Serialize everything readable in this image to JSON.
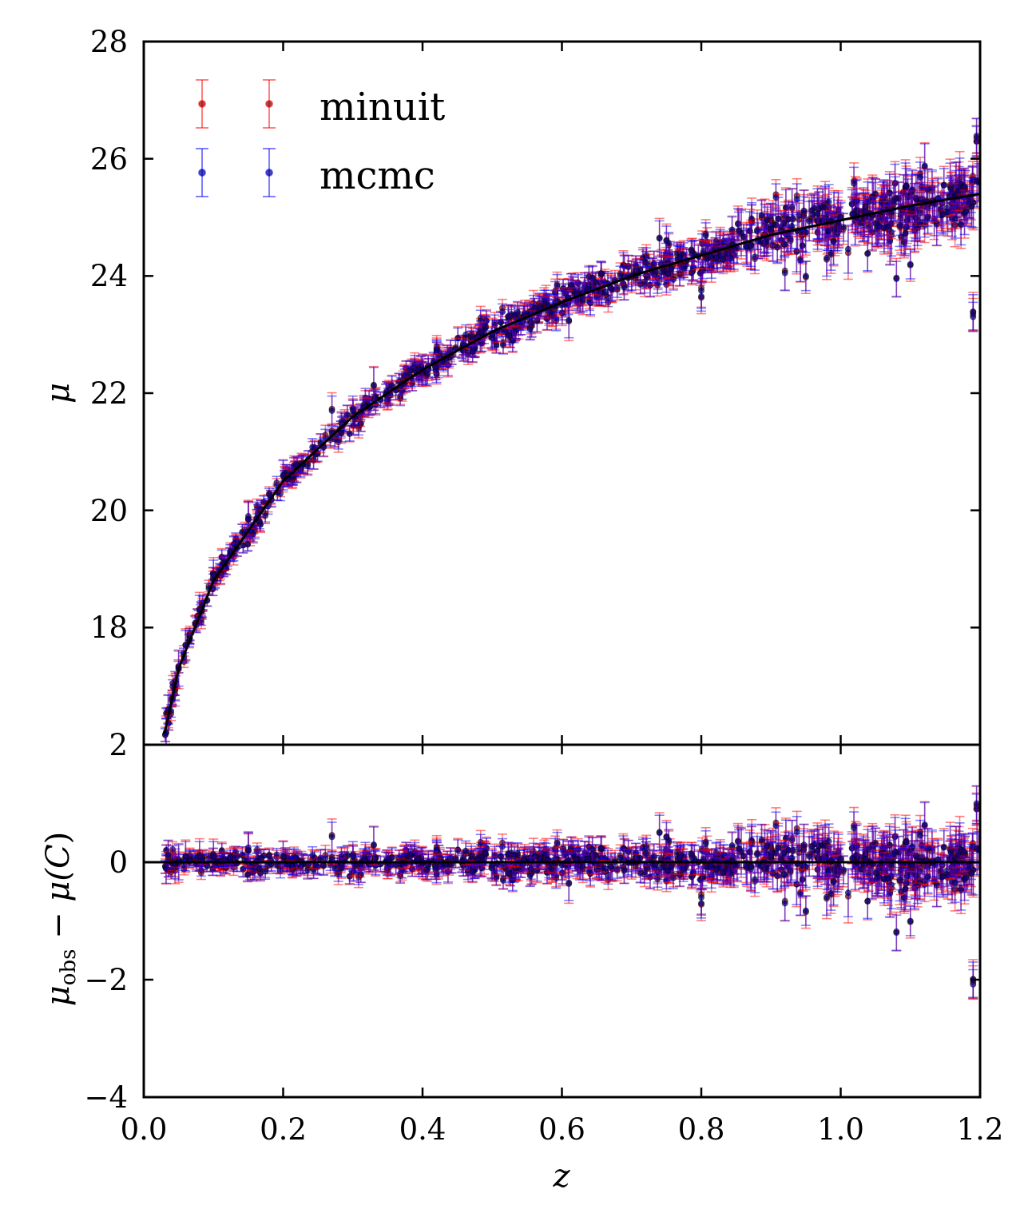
{
  "chart_data": [
    {
      "type": "scatter",
      "panel": "top",
      "xlabel": "",
      "ylabel": "μ",
      "xlim": [
        0.0,
        1.2
      ],
      "ylim": [
        16,
        28
      ],
      "xticks": [
        0.0,
        0.2,
        0.4,
        0.6,
        0.8,
        1.0,
        1.2
      ],
      "yticks": [
        18,
        20,
        22,
        24,
        26,
        28
      ],
      "ytick_labels": [
        "18",
        "20",
        "22",
        "24",
        "26",
        "28"
      ],
      "grid": false,
      "legend": {
        "placement": "top-left",
        "entries": [
          "minuit",
          "mcmc"
        ]
      },
      "series": [
        {
          "name": "minuit",
          "color": "#ff0000",
          "marker": "errorbar-point"
        },
        {
          "name": "mcmc",
          "color": "#0000ff",
          "marker": "errorbar-point"
        }
      ],
      "model_curve": {
        "color": "#000000",
        "z": [
          0.03,
          0.05,
          0.1,
          0.2,
          0.3,
          0.4,
          0.5,
          0.6,
          0.7,
          0.8,
          0.9,
          1.0,
          1.1,
          1.2
        ],
        "mu": [
          16.2,
          17.3,
          18.8,
          20.5,
          21.6,
          22.4,
          23.05,
          23.55,
          24.0,
          24.35,
          24.7,
          24.95,
          25.2,
          25.4
        ]
      },
      "sample_points": [
        {
          "z": 0.032,
          "mu": 16.2
        },
        {
          "z": 0.035,
          "mu": 16.6
        },
        {
          "z": 0.045,
          "mu": 17.0
        },
        {
          "z": 0.06,
          "mu": 17.7
        },
        {
          "z": 0.08,
          "mu": 18.3
        },
        {
          "z": 0.1,
          "mu": 18.9
        },
        {
          "z": 0.15,
          "mu": 19.9
        },
        {
          "z": 0.2,
          "mu": 20.6
        },
        {
          "z": 0.27,
          "mu": 21.7
        },
        {
          "z": 0.3,
          "mu": 21.7
        },
        {
          "z": 0.4,
          "mu": 22.4
        },
        {
          "z": 0.5,
          "mu": 23.0
        },
        {
          "z": 0.6,
          "mu": 23.5
        },
        {
          "z": 0.7,
          "mu": 24.0
        },
        {
          "z": 0.75,
          "mu": 24.6
        },
        {
          "z": 0.8,
          "mu": 23.65
        },
        {
          "z": 0.9,
          "mu": 24.8
        },
        {
          "z": 0.95,
          "mu": 24.0
        },
        {
          "z": 1.0,
          "mu": 25.0
        },
        {
          "z": 1.1,
          "mu": 24.2
        },
        {
          "z": 1.19,
          "mu": 23.3
        },
        {
          "z": 1.195,
          "mu": 26.3
        }
      ]
    },
    {
      "type": "scatter",
      "panel": "bottom",
      "xlabel": "z",
      "ylabel": "μ_obs − μ(C)",
      "ylabel_main": "μ",
      "ylabel_sub": "obs",
      "ylabel_tail": " − μ(",
      "ylabel_symbol": "C",
      "ylabel_close": ")",
      "xlim": [
        0.0,
        1.2
      ],
      "ylim": [
        -4,
        2
      ],
      "xticks": [
        0.0,
        0.2,
        0.4,
        0.6,
        0.8,
        1.0,
        1.2
      ],
      "xtick_labels": [
        "0.0",
        "0.2",
        "0.4",
        "0.6",
        "0.8",
        "1.0",
        "1.2"
      ],
      "yticks": [
        -4,
        -2,
        0,
        2
      ],
      "ytick_labels": [
        "−4",
        "−2",
        "0",
        "2"
      ],
      "grid": false,
      "zero_line": {
        "y": 0,
        "color": "#000000"
      },
      "series": [
        {
          "name": "minuit",
          "color": "#ff0000"
        },
        {
          "name": "mcmc",
          "color": "#0000ff"
        }
      ],
      "sample_points": [
        {
          "z": 0.05,
          "dmu": 0.0
        },
        {
          "z": 0.15,
          "dmu": 0.2
        },
        {
          "z": 0.33,
          "dmu": 0.3
        },
        {
          "z": 0.61,
          "dmu": -0.35
        },
        {
          "z": 0.74,
          "dmu": 0.5
        },
        {
          "z": 0.8,
          "dmu": -0.6
        },
        {
          "z": 0.92,
          "dmu": -0.7
        },
        {
          "z": 1.08,
          "dmu": -1.2
        },
        {
          "z": 1.19,
          "dmu": -2.0
        },
        {
          "z": 1.195,
          "dmu": 1.0
        }
      ]
    }
  ]
}
